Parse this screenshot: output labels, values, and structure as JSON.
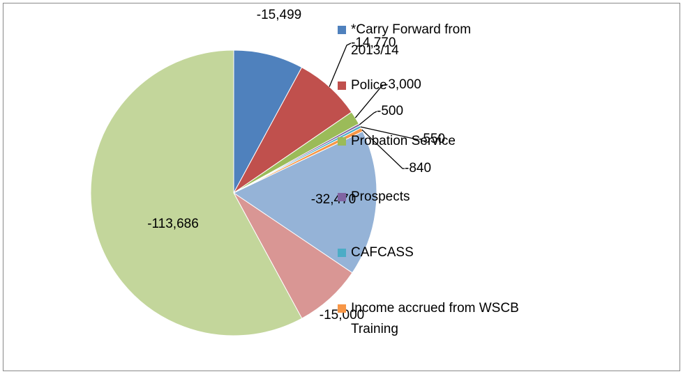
{
  "chart_data": {
    "type": "pie",
    "categories": [
      "*Carry Forward from 2013/14",
      "Police",
      "Probation Service",
      "Prospects",
      "CAFCASS",
      "Income accrued from WSCB Training",
      null,
      null,
      null
    ],
    "values": [
      -15499,
      -14770,
      -3000,
      -500,
      -550,
      -840,
      -32470,
      -15000,
      -113686
    ],
    "value_labels": [
      "-15,499",
      "-14,770",
      "-3,000",
      "-500",
      "-550",
      "-840",
      "-32,470",
      "-15,000",
      "-113,686"
    ],
    "colors": [
      "#4f81bd",
      "#c0504d",
      "#9bbb59",
      "#8064a2",
      "#4bacc6",
      "#f79646",
      "#95b3d7",
      "#d99694",
      "#c3d69b"
    ]
  }
}
